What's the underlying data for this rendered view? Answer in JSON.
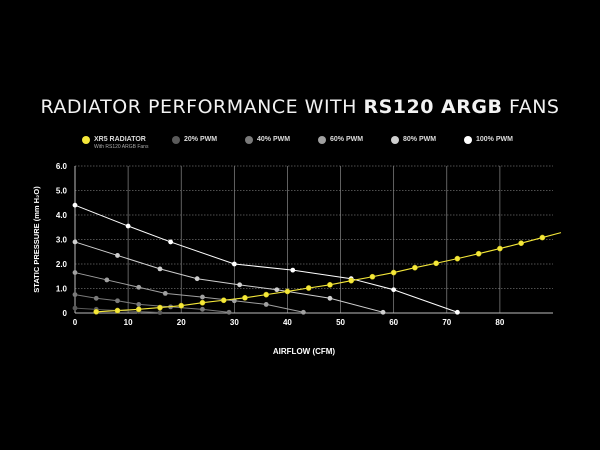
{
  "title": {
    "prefix": "RADIATOR PERFORMANCE WITH ",
    "bold": "RS120 ARGB",
    "suffix": " FANS"
  },
  "legend": [
    {
      "label": "XR5 RADIATOR",
      "sub": "With RS120 ARGB Fans",
      "color": "#f5e83a"
    },
    {
      "label": "20% PWM",
      "color": "#5a5a5a"
    },
    {
      "label": "40% PWM",
      "color": "#7a7a7a"
    },
    {
      "label": "60% PWM",
      "color": "#a0a0a0"
    },
    {
      "label": "80% PWM",
      "color": "#cfcfcf"
    },
    {
      "label": "100% PWM",
      "color": "#ffffff"
    }
  ],
  "chart_data": {
    "type": "line",
    "xlabel": "AIRFLOW (CFM)",
    "ylabel": "STATIC PRESSURE (mm H₂O)",
    "xlim": [
      0,
      90
    ],
    "ylim": [
      0,
      6
    ],
    "xticks": [
      "0",
      "10",
      "20",
      "30",
      "40",
      "50",
      "60",
      "70",
      "80"
    ],
    "yticks": [
      "0",
      "1.0",
      "2.0",
      "3.0",
      "4.0",
      "5.0",
      "6.0"
    ],
    "series": [
      {
        "name": "20% PWM",
        "color": "#5a5a5a",
        "points": [
          [
            0,
            0.2
          ],
          [
            4,
            0.15
          ],
          [
            8,
            0.1
          ],
          [
            12,
            0.06
          ],
          [
            16,
            0.02
          ]
        ]
      },
      {
        "name": "40% PWM",
        "color": "#7a7a7a",
        "points": [
          [
            0,
            0.75
          ],
          [
            4,
            0.6
          ],
          [
            8,
            0.5
          ],
          [
            12,
            0.35
          ],
          [
            18,
            0.25
          ],
          [
            24,
            0.15
          ],
          [
            29,
            0.03
          ]
        ]
      },
      {
        "name": "60% PWM",
        "color": "#a0a0a0",
        "points": [
          [
            0,
            1.65
          ],
          [
            6,
            1.35
          ],
          [
            12,
            1.05
          ],
          [
            17,
            0.8
          ],
          [
            24,
            0.65
          ],
          [
            30,
            0.5
          ],
          [
            36,
            0.35
          ],
          [
            43,
            0.03
          ]
        ]
      },
      {
        "name": "80% PWM",
        "color": "#cfcfcf",
        "points": [
          [
            0,
            2.9
          ],
          [
            8,
            2.35
          ],
          [
            16,
            1.8
          ],
          [
            23,
            1.4
          ],
          [
            31,
            1.15
          ],
          [
            38,
            0.95
          ],
          [
            48,
            0.6
          ],
          [
            58,
            0.03
          ]
        ]
      },
      {
        "name": "100% PWM",
        "color": "#ffffff",
        "points": [
          [
            0,
            4.4
          ],
          [
            10,
            3.55
          ],
          [
            18,
            2.9
          ],
          [
            30,
            2.0
          ],
          [
            41,
            1.75
          ],
          [
            52,
            1.4
          ],
          [
            60,
            0.95
          ],
          [
            72,
            0.03
          ]
        ]
      },
      {
        "name": "XR5 RADIATOR",
        "color": "#f5e83a",
        "points": [
          [
            4,
            0.05
          ],
          [
            8,
            0.1
          ],
          [
            12,
            0.15
          ],
          [
            16,
            0.22
          ],
          [
            20,
            0.3
          ],
          [
            24,
            0.42
          ],
          [
            28,
            0.52
          ],
          [
            32,
            0.62
          ],
          [
            36,
            0.75
          ],
          [
            40,
            0.88
          ],
          [
            44,
            1.02
          ],
          [
            48,
            1.15
          ],
          [
            52,
            1.32
          ],
          [
            56,
            1.48
          ],
          [
            60,
            1.65
          ],
          [
            64,
            1.85
          ],
          [
            68,
            2.03
          ],
          [
            72,
            2.22
          ],
          [
            76,
            2.42
          ],
          [
            80,
            2.63
          ],
          [
            84,
            2.85
          ],
          [
            88,
            3.08
          ]
        ]
      }
    ]
  }
}
